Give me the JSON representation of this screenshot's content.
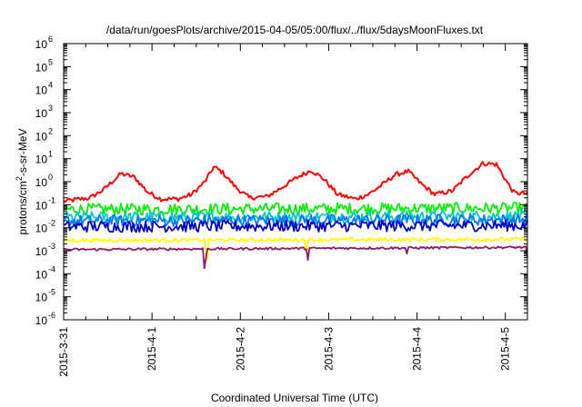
{
  "chart_data": {
    "type": "line",
    "title": "/data/run/goesPlots/archive/2015-04-05/05:00/flux/../flux/5daysMoonFluxes.txt",
    "xlabel": "Coordinated Universal Time (UTC)",
    "ylabel_parts": [
      "protons/cm",
      "2",
      "-s-sr-MeV"
    ],
    "y_scale": "log",
    "ylim_exp": [
      -6,
      6
    ],
    "y_tick_exponents": [
      -6,
      -5,
      -4,
      -3,
      -2,
      -1,
      0,
      1,
      2,
      3,
      4,
      5,
      6
    ],
    "y_tick_base": "10",
    "xlim_days": [
      0,
      5.25
    ],
    "x_tick_labels": [
      "2015-3-31",
      "2015-4-1",
      "2015-4-2",
      "2015-4-3",
      "2015-4-4",
      "2015-4-5"
    ],
    "x_tick_days": [
      0,
      1,
      2,
      3,
      4,
      5
    ],
    "grid": false,
    "legend": "none",
    "series": [
      {
        "color": "#ff0000",
        "knots": [
          [
            0,
            -0.85
          ],
          [
            0.3,
            -0.7
          ],
          [
            0.45,
            -0.35
          ],
          [
            0.65,
            0.35
          ],
          [
            0.8,
            0.2
          ],
          [
            0.95,
            -0.45
          ],
          [
            1.1,
            -0.75
          ],
          [
            1.3,
            -0.75
          ],
          [
            1.45,
            -0.55
          ],
          [
            1.6,
            0.0
          ],
          [
            1.7,
            0.65
          ],
          [
            1.8,
            0.4
          ],
          [
            1.95,
            -0.25
          ],
          [
            2.1,
            -0.7
          ],
          [
            2.3,
            -0.65
          ],
          [
            2.45,
            -0.3
          ],
          [
            2.65,
            0.2
          ],
          [
            2.8,
            0.5
          ],
          [
            2.95,
            0.1
          ],
          [
            3.1,
            -0.55
          ],
          [
            3.3,
            -0.75
          ],
          [
            3.45,
            -0.55
          ],
          [
            3.6,
            -0.15
          ],
          [
            3.75,
            0.3
          ],
          [
            3.9,
            0.45
          ],
          [
            4.05,
            -0.1
          ],
          [
            4.2,
            -0.55
          ],
          [
            4.4,
            -0.4
          ],
          [
            4.6,
            0.35
          ],
          [
            4.75,
            0.8
          ],
          [
            4.9,
            0.75
          ],
          [
            5.0,
            0.1
          ],
          [
            5.1,
            -0.5
          ],
          [
            5.2,
            -0.5
          ],
          [
            5.25,
            -0.55
          ]
        ],
        "noise": 0.1,
        "dips": []
      },
      {
        "color": "#00ee00",
        "knots": [
          [
            0,
            -1.2
          ],
          [
            5.25,
            -1.15
          ]
        ],
        "noise": 0.25,
        "dips": []
      },
      {
        "color": "#00c8c8",
        "knots": [
          [
            0,
            -1.55
          ],
          [
            5.25,
            -1.5
          ]
        ],
        "noise": 0.25,
        "dips": []
      },
      {
        "color": "#0077ff",
        "knots": [
          [
            0,
            -1.7
          ],
          [
            5.25,
            -1.65
          ]
        ],
        "noise": 0.25,
        "dips": []
      },
      {
        "color": "#0000bb",
        "knots": [
          [
            0,
            -1.95
          ],
          [
            5.25,
            -1.9
          ]
        ],
        "noise": 0.25,
        "dips": []
      },
      {
        "color": "#ffff00",
        "knots": [
          [
            0,
            -2.55
          ],
          [
            5.25,
            -2.5
          ]
        ],
        "noise": 0.08,
        "dips": [
          [
            1.62,
            -4.7
          ],
          [
            2.75,
            -3.2
          ]
        ]
      },
      {
        "color": "#8b1a6b",
        "knots": [
          [
            0,
            -2.95
          ],
          [
            5.25,
            -2.85
          ]
        ],
        "noise": 0.05,
        "dips": [
          [
            1.6,
            -5.2
          ],
          [
            2.76,
            -3.75
          ],
          [
            3.89,
            -3.3
          ],
          [
            5.25,
            -3.3
          ]
        ]
      }
    ]
  }
}
